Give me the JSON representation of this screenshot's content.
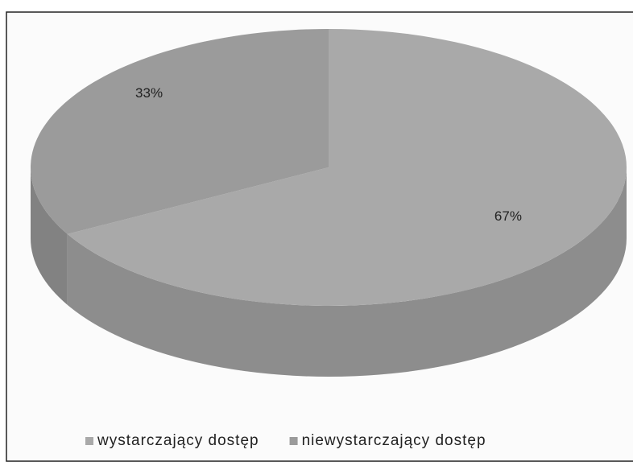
{
  "chart_data": {
    "type": "pie",
    "categories": [
      "wystarczający dostęp",
      "niewystarczający dostęp"
    ],
    "values": [
      67,
      33
    ],
    "value_labels": [
      "67%",
      "33%"
    ],
    "colors": [
      "#a9a9a9",
      "#9b9b9b"
    ],
    "legend": "bottom"
  }
}
